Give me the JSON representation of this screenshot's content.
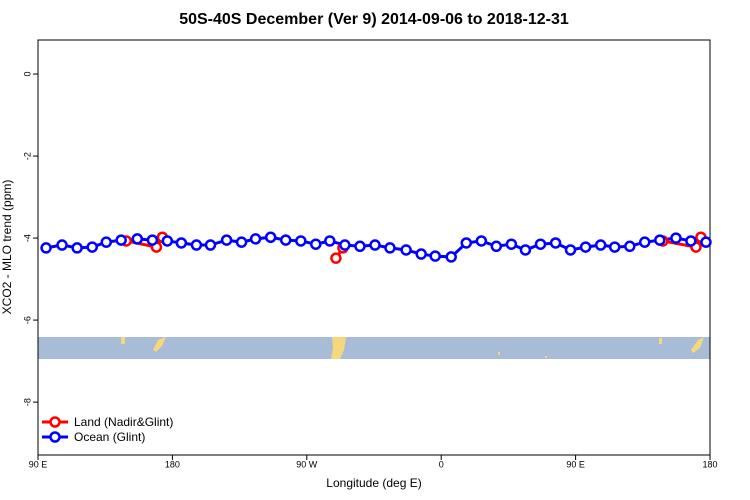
{
  "chart_data": {
    "type": "line",
    "title": "50S-40S December (Ver 9)   2014-09-06 to 2018-12-31",
    "xlabel": "Longitude (deg E)",
    "ylabel": "XCO2 - MLO trend (ppm)",
    "xlim": [
      90,
      540
    ],
    "ylim": [
      -9.29,
      0.83
    ],
    "xticks": [
      {
        "value": 90,
        "label": "90 E"
      },
      {
        "value": 180,
        "label": "180"
      },
      {
        "value": 270,
        "label": "90 W"
      },
      {
        "value": 360,
        "label": "0"
      },
      {
        "value": 450,
        "label": "90 E"
      },
      {
        "value": 540,
        "label": "180"
      }
    ],
    "yticks": [
      0,
      -2,
      -4,
      -6,
      -8
    ],
    "legend": "bottom-left",
    "series": [
      {
        "name": "Land (Nadir&Glint)",
        "color": "#ff0000",
        "x": [
          149.1,
          169.3,
          173.3,
          null,
          289.5,
          294.2,
          null,
          508.4,
          530.6,
          533.9
        ],
        "values": [
          -4.07,
          -4.22,
          -3.98,
          null,
          -4.49,
          -4.24,
          null,
          -4.07,
          -4.22,
          -3.98
        ]
      },
      {
        "name": "Ocean (Glint)",
        "color": "#0000ff",
        "x": [
          95.4,
          106.1,
          116.2,
          126.3,
          135.7,
          145.7,
          156.5,
          166.6,
          176.6,
          186.0,
          196.1,
          205.5,
          216.3,
          226.3,
          235.7,
          245.8,
          255.9,
          266.0,
          276.0,
          285.4,
          295.5,
          305.6,
          315.7,
          325.7,
          336.5,
          346.6,
          356.0,
          366.7,
          376.8,
          386.9,
          396.9,
          407.0,
          416.4,
          426.5,
          436.6,
          446.6,
          456.7,
          466.8,
          476.2,
          486.3,
          496.3,
          506.4,
          517.2,
          527.2,
          537.3
        ],
        "values": [
          -4.24,
          -4.17,
          -4.24,
          -4.22,
          -4.1,
          -4.05,
          -4.02,
          -4.05,
          -4.07,
          -4.12,
          -4.17,
          -4.17,
          -4.05,
          -4.1,
          -4.02,
          -3.98,
          -4.05,
          -4.07,
          -4.15,
          -4.07,
          -4.17,
          -4.2,
          -4.17,
          -4.24,
          -4.29,
          -4.39,
          -4.44,
          -4.46,
          -4.12,
          -4.07,
          -4.2,
          -4.15,
          -4.29,
          -4.15,
          -4.12,
          -4.29,
          -4.22,
          -4.17,
          -4.22,
          -4.2,
          -4.1,
          -4.05,
          -4.0,
          -4.07,
          -4.1
        ]
      }
    ]
  }
}
